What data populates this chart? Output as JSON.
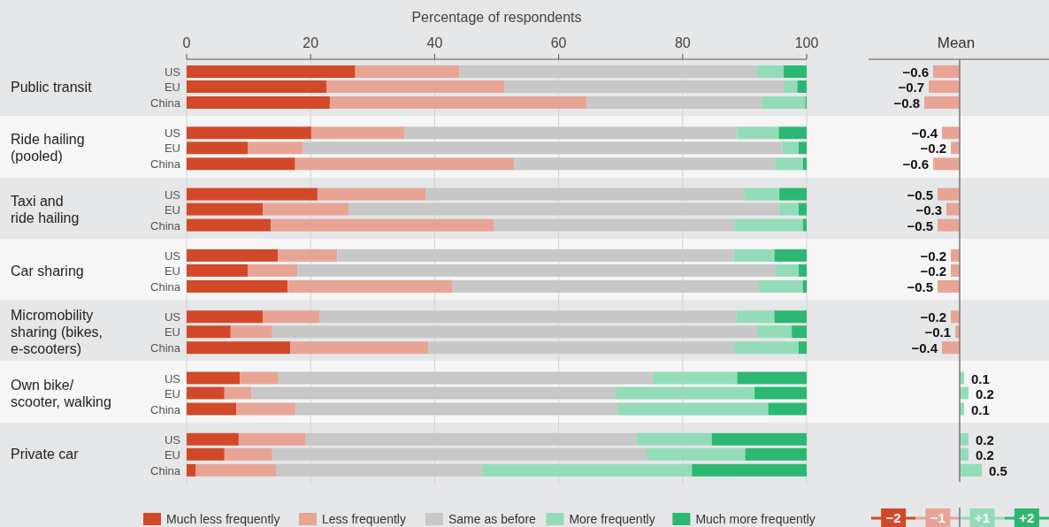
{
  "chart_data": [
    {
      "type": "bar",
      "orientation": "horizontal",
      "stacked": true,
      "xlabel": "Percentage of respondents",
      "xlim": [
        0,
        100
      ],
      "xticks": [
        0,
        20,
        40,
        60,
        80,
        100
      ],
      "grid": "x",
      "legend": "bottom",
      "categories": [
        "US",
        "EU",
        "China",
        "US",
        "EU",
        "China",
        "US",
        "EU",
        "China",
        "US",
        "EU",
        "China",
        "US",
        "EU",
        "China",
        "US",
        "EU",
        "China",
        "US",
        "EU",
        "China"
      ],
      "annotations": [
        "Public transit",
        "Ride hailing\n(pooled)",
        "Taxi and\nride hailing",
        "Car sharing",
        "Micromobility\nsharing (bikes,\ne-scooters)",
        "Own bike/\nscooter, walking",
        "Private car"
      ],
      "series": [
        {
          "name": "Much less frequently",
          "color": "#d2492a",
          "values": [
            27.2,
            22.6,
            23.1,
            20.1,
            9.9,
            17.5,
            21.1,
            12.3,
            13.6,
            14.7,
            9.9,
            16.3,
            12.3,
            7.1,
            16.7,
            8.6,
            6.1,
            8.0,
            8.4,
            6.1,
            1.5
          ]
        },
        {
          "name": "Less frequently",
          "color": "#e8a596",
          "values": [
            16.8,
            28.7,
            41.4,
            15.0,
            8.9,
            35.3,
            17.5,
            13.8,
            36.0,
            9.6,
            8.0,
            26.6,
            9.1,
            6.7,
            22.3,
            6.1,
            4.4,
            9.6,
            10.8,
            7.7,
            13.0
          ]
        },
        {
          "name": "Same as before",
          "color": "#c8c8c8",
          "values": [
            48.0,
            45.0,
            28.2,
            53.7,
            77.3,
            42.1,
            51.3,
            69.4,
            38.8,
            63.9,
            77.1,
            49.4,
            67.3,
            78.2,
            49.2,
            60.5,
            58.7,
            52.0,
            53.3,
            60.4,
            33.2
          ]
        },
        {
          "name": "More frequently",
          "color": "#94dcb8",
          "values": [
            4.3,
            2.2,
            7.1,
            6.7,
            2.6,
            4.5,
            5.7,
            3.2,
            11.0,
            6.6,
            3.7,
            7.1,
            6.1,
            5.6,
            10.5,
            13.6,
            22.4,
            24.2,
            12.2,
            15.9,
            33.8
          ]
        },
        {
          "name": "Much more frequently",
          "color": "#2cb872",
          "values": [
            3.7,
            1.5,
            0.2,
            4.5,
            1.3,
            0.6,
            4.4,
            1.3,
            0.6,
            5.2,
            1.3,
            0.6,
            5.2,
            2.4,
            1.3,
            11.2,
            8.4,
            6.2,
            15.3,
            9.9,
            18.5
          ]
        }
      ]
    },
    {
      "type": "bar",
      "orientation": "horizontal",
      "title": "Mean",
      "data_labels": true,
      "categories": [
        null,
        null,
        null,
        null,
        null,
        null,
        null,
        null,
        null,
        null,
        null,
        null,
        null,
        null,
        null,
        null,
        null,
        null,
        null,
        null,
        null
      ],
      "values": [
        -0.6,
        -0.7,
        -0.8,
        -0.4,
        -0.2,
        -0.6,
        -0.5,
        -0.3,
        -0.5,
        -0.2,
        -0.2,
        -0.5,
        -0.2,
        -0.1,
        -0.4,
        0.1,
        0.2,
        0.1,
        0.2,
        0.2,
        0.5
      ],
      "colors": [
        "#e8a596",
        "#e8a596",
        "#e8a596",
        "#e8a596",
        "#e8a596",
        "#e8a596",
        "#e8a596",
        "#e8a596",
        "#e8a596",
        "#e8a596",
        "#e8a596",
        "#e8a596",
        "#e8a596",
        "#e8a596",
        "#e8a596",
        "#94dcb8",
        "#94dcb8",
        "#94dcb8",
        "#94dcb8",
        "#94dcb8",
        "#94dcb8"
      ],
      "annotations": [
        "−2",
        "−1",
        "+1",
        "+2"
      ]
    }
  ]
}
